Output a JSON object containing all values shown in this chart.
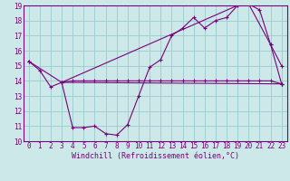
{
  "xlabel": "Windchill (Refroidissement éolien,°C)",
  "bg_color": "#cce8e8",
  "line_color": "#7b007b",
  "grid_color": "#99cccc",
  "xlim": [
    -0.5,
    23.5
  ],
  "ylim": [
    10,
    19
  ],
  "yticks": [
    10,
    11,
    12,
    13,
    14,
    15,
    16,
    17,
    18,
    19
  ],
  "xticks": [
    0,
    1,
    2,
    3,
    4,
    5,
    6,
    7,
    8,
    9,
    10,
    11,
    12,
    13,
    14,
    15,
    16,
    17,
    18,
    19,
    20,
    21,
    22,
    23
  ],
  "series1_x": [
    0,
    1,
    2,
    3,
    4,
    5,
    6,
    7,
    8,
    9,
    10,
    11,
    12,
    13,
    14,
    15,
    16,
    17,
    18,
    19,
    20,
    21,
    22,
    23
  ],
  "series1_y": [
    15.3,
    14.7,
    13.6,
    13.9,
    10.9,
    10.9,
    11.0,
    10.5,
    10.4,
    11.1,
    13.0,
    14.9,
    15.4,
    17.0,
    17.5,
    18.2,
    17.5,
    18.0,
    18.2,
    19.0,
    19.1,
    18.7,
    16.4,
    15.0
  ],
  "series2_x": [
    0,
    3,
    23
  ],
  "series2_y": [
    15.3,
    13.9,
    13.8
  ],
  "series3_x": [
    3,
    4,
    5,
    6,
    7,
    8,
    9,
    10,
    11,
    12,
    13,
    14,
    15,
    16,
    17,
    18,
    19,
    20,
    21,
    22,
    23
  ],
  "series3_y": [
    13.9,
    14.0,
    14.0,
    14.0,
    14.0,
    14.0,
    14.0,
    14.0,
    14.0,
    14.0,
    14.0,
    14.0,
    14.0,
    14.0,
    14.0,
    14.0,
    14.0,
    14.0,
    14.0,
    14.0,
    13.8
  ],
  "series4_x": [
    3,
    19,
    20,
    22,
    23
  ],
  "series4_y": [
    13.9,
    19.0,
    19.1,
    16.4,
    13.8
  ],
  "font_color": "#7b007b",
  "font_size_label": 6.0,
  "font_size_tick": 5.5
}
